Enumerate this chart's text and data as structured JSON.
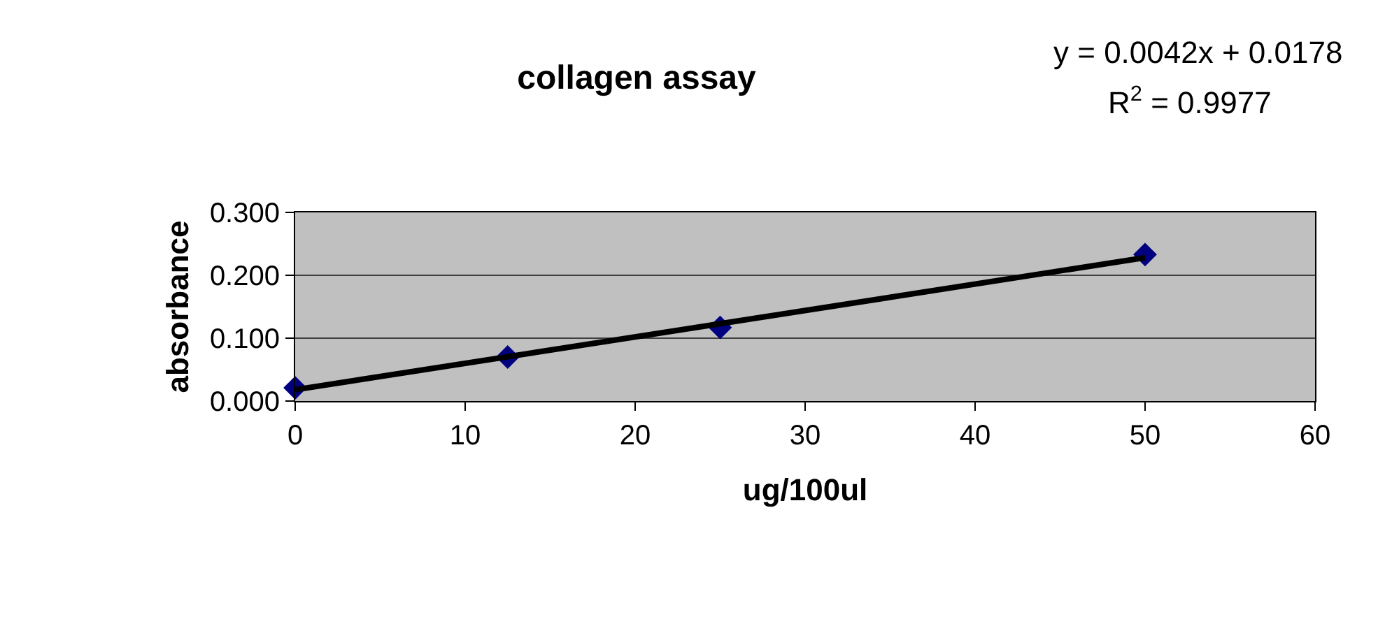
{
  "chart_data": {
    "type": "scatter",
    "title": "collagen assay",
    "xlabel": "ug/100ul",
    "ylabel": "absorbance",
    "xlim": [
      0,
      60
    ],
    "xticks": [
      0,
      10,
      20,
      30,
      40,
      50,
      60
    ],
    "ylim": [
      0,
      0.3
    ],
    "yticks": [
      {
        "value": 0,
        "label": "0.000"
      },
      {
        "value": 0.1,
        "label": "0.100"
      },
      {
        "value": 0.2,
        "label": "0.200"
      },
      {
        "value": 0.3,
        "label": "0.300"
      }
    ],
    "grid": "y",
    "legend": false,
    "series": [
      {
        "color": "#000080",
        "marker": "diamond",
        "x": [
          0,
          12.5,
          25,
          50
        ],
        "values": [
          0.021,
          0.07,
          0.117,
          0.233
        ]
      },
      {
        "type": "line",
        "color": "#000000",
        "x": [
          0,
          50
        ],
        "values": [
          0.018,
          0.228
        ],
        "line_style": "solid"
      }
    ],
    "annotations": [
      "y = 0.0042x + 0.0178",
      "R$^{2}$ = 0.9977"
    ]
  }
}
